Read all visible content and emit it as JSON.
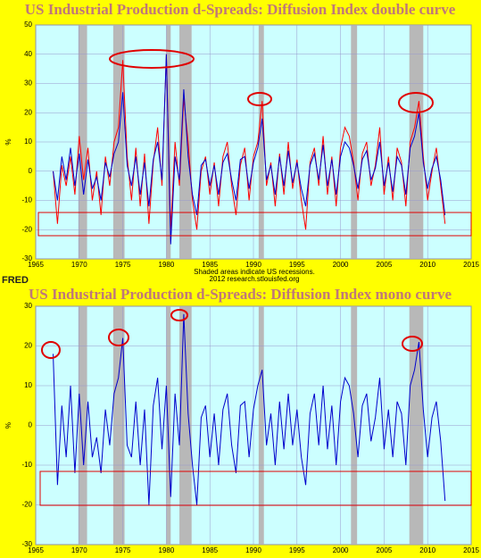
{
  "logo": "FRED",
  "chart_data": [
    {
      "type": "line",
      "title": "US Industrial Production d-Spreads: Diffusion Index double curve",
      "y_label": "%",
      "notes": [
        "Shaded areas indicate US recessions.",
        "2012 research.stlouisfed.org"
      ],
      "xlim": [
        1965,
        2015
      ],
      "xticks": [
        1965,
        1970,
        1975,
        1980,
        1985,
        1990,
        1995,
        2000,
        2005,
        2010,
        2015
      ],
      "ylim": [
        -30,
        50
      ],
      "yticks": [
        -30,
        -20,
        -10,
        0,
        10,
        20,
        30,
        40,
        50
      ],
      "grid": true,
      "recessions": [
        [
          1969.9,
          1970.9
        ],
        [
          1973.9,
          1975.2
        ],
        [
          1980.0,
          1980.5
        ],
        [
          1981.5,
          1982.9
        ],
        [
          1990.6,
          1991.2
        ],
        [
          2001.2,
          2001.9
        ],
        [
          2007.9,
          2009.5
        ]
      ],
      "x": [
        1967,
        1967.5,
        1968,
        1968.5,
        1969,
        1969.5,
        1970,
        1970.5,
        1971,
        1971.5,
        1972,
        1972.5,
        1973,
        1973.5,
        1974,
        1974.5,
        1975,
        1975.5,
        1976,
        1976.5,
        1977,
        1977.5,
        1978,
        1978.5,
        1979,
        1979.5,
        1980,
        1980.5,
        1981,
        1981.5,
        1982,
        1982.5,
        1983,
        1983.5,
        1984,
        1984.5,
        1985,
        1985.5,
        1986,
        1986.5,
        1987,
        1987.5,
        1988,
        1988.5,
        1989,
        1989.5,
        1990,
        1990.5,
        1991,
        1991.5,
        1992,
        1992.5,
        1993,
        1993.5,
        1994,
        1994.5,
        1995,
        1995.5,
        1996,
        1996.5,
        1997,
        1997.5,
        1998,
        1998.5,
        1999,
        1999.5,
        2000,
        2000.5,
        2001,
        2001.5,
        2002,
        2002.5,
        2003,
        2003.5,
        2004,
        2004.5,
        2005,
        2005.5,
        2006,
        2006.5,
        2007,
        2007.5,
        2008,
        2008.5,
        2009,
        2009.5,
        2010,
        2010.5,
        2011,
        2011.5,
        2012
      ],
      "series": [
        {
          "color": "#ff0000",
          "values": [
            0,
            -18,
            2,
            -5,
            5,
            -8,
            12,
            -3,
            8,
            -10,
            0,
            -15,
            5,
            -5,
            10,
            15,
            38,
            5,
            -10,
            8,
            -12,
            6,
            -18,
            3,
            15,
            -5,
            40,
            -20,
            10,
            -5,
            25,
            10,
            -10,
            -20,
            0,
            5,
            -8,
            3,
            -12,
            5,
            10,
            -5,
            -15,
            2,
            8,
            -10,
            5,
            10,
            24,
            -5,
            3,
            -12,
            6,
            -8,
            10,
            -6,
            4,
            -10,
            -20,
            3,
            8,
            -5,
            12,
            -8,
            5,
            -12,
            8,
            15,
            12,
            3,
            -10,
            6,
            10,
            -5,
            2,
            15,
            -8,
            5,
            -10,
            8,
            3,
            -12,
            10,
            15,
            24,
            5,
            -10,
            0,
            8,
            -5,
            -18
          ]
        },
        {
          "color": "#0000cc",
          "values": [
            0,
            -10,
            5,
            -3,
            8,
            -5,
            6,
            -8,
            4,
            -6,
            -2,
            -10,
            3,
            -2,
            6,
            10,
            27,
            2,
            -5,
            5,
            -8,
            3,
            -12,
            4,
            10,
            -3,
            40,
            -25,
            5,
            -3,
            28,
            5,
            -8,
            -15,
            2,
            4,
            -5,
            2,
            -8,
            3,
            6,
            -3,
            -10,
            4,
            5,
            -6,
            3,
            8,
            18,
            -3,
            2,
            -8,
            5,
            -5,
            7,
            -4,
            3,
            -6,
            -12,
            2,
            6,
            -3,
            9,
            -5,
            4,
            -8,
            5,
            10,
            8,
            2,
            -6,
            4,
            7,
            -3,
            1,
            10,
            -5,
            3,
            -7,
            5,
            2,
            -8,
            8,
            12,
            20,
            3,
            -6,
            1,
            5,
            -3,
            -15
          ]
        }
      ]
    },
    {
      "type": "line",
      "title": "US Industrial Production d-Spreads: Diffusion Index   mono curve",
      "y_label": "%",
      "xlim": [
        1965,
        2015
      ],
      "xticks": [
        1965,
        1970,
        1975,
        1980,
        1985,
        1990,
        1995,
        2000,
        2005,
        2010,
        2015
      ],
      "ylim": [
        -30,
        30
      ],
      "yticks": [
        -30,
        -20,
        -10,
        0,
        10,
        20,
        30
      ],
      "grid": true,
      "recessions": [
        [
          1969.9,
          1970.9
        ],
        [
          1973.9,
          1975.2
        ],
        [
          1980.0,
          1980.5
        ],
        [
          1981.5,
          1982.9
        ],
        [
          1990.6,
          1991.2
        ],
        [
          2001.2,
          2001.9
        ],
        [
          2007.9,
          2009.5
        ]
      ],
      "x": [
        1967,
        1967.5,
        1968,
        1968.5,
        1969,
        1969.5,
        1970,
        1970.5,
        1971,
        1971.5,
        1972,
        1972.5,
        1973,
        1973.5,
        1974,
        1974.5,
        1975,
        1975.5,
        1976,
        1976.5,
        1977,
        1977.5,
        1978,
        1978.5,
        1979,
        1979.5,
        1980,
        1980.5,
        1981,
        1981.5,
        1982,
        1982.5,
        1983,
        1983.5,
        1984,
        1984.5,
        1985,
        1985.5,
        1986,
        1986.5,
        1987,
        1987.5,
        1988,
        1988.5,
        1989,
        1989.5,
        1990,
        1990.5,
        1991,
        1991.5,
        1992,
        1992.5,
        1993,
        1993.5,
        1994,
        1994.5,
        1995,
        1995.5,
        1996,
        1996.5,
        1997,
        1997.5,
        1998,
        1998.5,
        1999,
        1999.5,
        2000,
        2000.5,
        2001,
        2001.5,
        2002,
        2002.5,
        2003,
        2003.5,
        2004,
        2004.5,
        2005,
        2005.5,
        2006,
        2006.5,
        2007,
        2007.5,
        2008,
        2008.5,
        2009,
        2009.5,
        2010,
        2010.5,
        2011,
        2011.5,
        2012
      ],
      "series": [
        {
          "color": "#0000cc",
          "values": [
            18,
            -15,
            5,
            -8,
            10,
            -12,
            8,
            -10,
            6,
            -8,
            -3,
            -12,
            4,
            -5,
            8,
            12,
            22,
            -5,
            -8,
            6,
            -10,
            4,
            -20,
            5,
            12,
            -6,
            10,
            -18,
            8,
            -5,
            28,
            3,
            -10,
            -20,
            2,
            5,
            -8,
            3,
            -10,
            4,
            8,
            -5,
            -12,
            5,
            6,
            -8,
            4,
            10,
            14,
            -5,
            3,
            -10,
            6,
            -6,
            8,
            -5,
            4,
            -8,
            -15,
            3,
            8,
            -5,
            10,
            -6,
            5,
            -10,
            6,
            12,
            10,
            3,
            -8,
            5,
            8,
            -4,
            2,
            12,
            -6,
            4,
            -8,
            6,
            3,
            -10,
            10,
            14,
            21,
            4,
            -8,
            2,
            6,
            -4,
            -19
          ]
        }
      ]
    }
  ]
}
